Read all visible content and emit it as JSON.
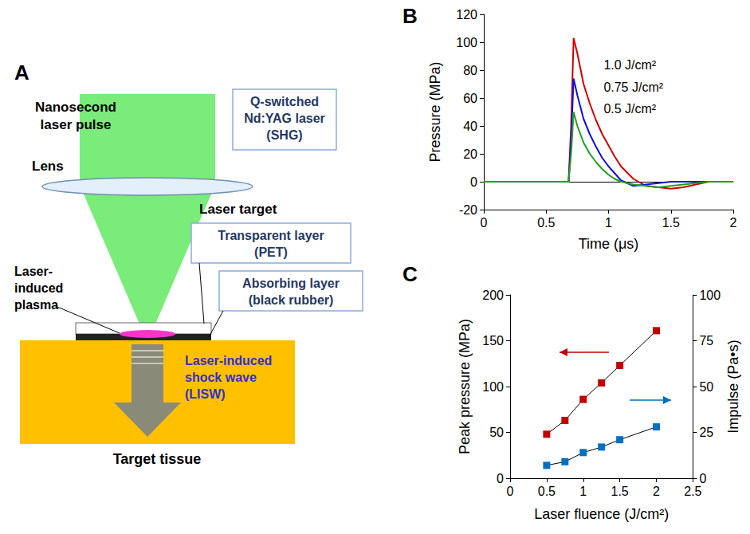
{
  "diagram": {
    "panel": "A",
    "laser_pulse": [
      "Nanosecond",
      "laser pulse"
    ],
    "laser_box": [
      "Q-switched",
      "Nd:YAG laser",
      "(SHG)"
    ],
    "lens": "Lens",
    "laser_target": "Laser target",
    "transparent_layer": [
      "Transparent layer",
      "(PET)"
    ],
    "absorbing_layer": [
      "Absorbing layer",
      "(black rubber)"
    ],
    "plasma": [
      "Laser-",
      "induced",
      "plasma"
    ],
    "shock_wave": [
      "Laser-induced",
      "shock wave",
      "(LISW)"
    ],
    "tissue": "Target tissue"
  },
  "chart_data": [
    {
      "panel": "B",
      "type": "line",
      "x_label": "Time (μs)",
      "y_label": "Pressure (MPa)",
      "x": [
        0,
        0.3,
        0.6,
        0.68,
        0.7,
        0.72,
        0.75,
        0.8,
        0.85,
        0.9,
        0.95,
        1.0,
        1.05,
        1.1,
        1.2,
        1.3,
        1.4,
        1.5,
        1.6,
        1.7,
        1.8,
        1.9,
        2.0
      ],
      "series": [
        {
          "name": "1.0 J/cm²",
          "color": "#d00000",
          "values": [
            0,
            0,
            0,
            0,
            40,
            103,
            92,
            70,
            56,
            44,
            34,
            26,
            18,
            11,
            2,
            -3,
            -4,
            -5,
            -4,
            -2,
            0,
            0,
            0
          ]
        },
        {
          "name": "0.75 J/cm²",
          "color": "#1010e0",
          "values": [
            0,
            0,
            0,
            0,
            30,
            74,
            62,
            45,
            34,
            25,
            17,
            11,
            6,
            1,
            -3,
            -2,
            -1,
            0,
            0,
            0,
            0,
            0,
            0
          ]
        },
        {
          "name": "0.5 J/cm²",
          "color": "#20a020",
          "values": [
            0,
            0,
            0,
            0,
            20,
            50,
            40,
            28,
            20,
            14,
            9,
            5,
            2,
            0,
            -2,
            -3,
            -4,
            -3,
            -2,
            -1,
            0,
            0,
            0
          ]
        }
      ],
      "xlim": [
        0,
        2
      ],
      "xticks": [
        0,
        0.5,
        1,
        1.5,
        2
      ],
      "ylim": [
        -20,
        120
      ],
      "yticks": [
        -20,
        0,
        20,
        40,
        60,
        80,
        100,
        120
      ],
      "grid": false
    },
    {
      "panel": "C",
      "type": "line",
      "x_label": "Laser fluence (J/cm²)",
      "y_label": "Peak pressure (MPa)",
      "y2_label": "Impulse (Pa•s)",
      "x": [
        0.5,
        0.75,
        1.0,
        1.25,
        1.5,
        2.0
      ],
      "series": [
        {
          "color": "#c00000",
          "marker": "square",
          "line_style": "solid",
          "values": [
            48,
            63,
            86,
            104,
            123,
            161
          ]
        },
        {
          "color": "#0070c0",
          "marker": "square",
          "line_style": "solid",
          "axis": "y2",
          "values": [
            7,
            9,
            14,
            17,
            21,
            28
          ]
        }
      ],
      "xlim": [
        0,
        2.5
      ],
      "xticks": [
        0,
        0.5,
        1,
        1.5,
        2,
        2.5
      ],
      "ylim": [
        0,
        200
      ],
      "yticks": [
        0,
        50,
        100,
        150,
        200
      ],
      "y2lim": [
        0,
        100
      ],
      "y2ticks": [
        0,
        25,
        50,
        75,
        100
      ],
      "grid": false
    }
  ]
}
